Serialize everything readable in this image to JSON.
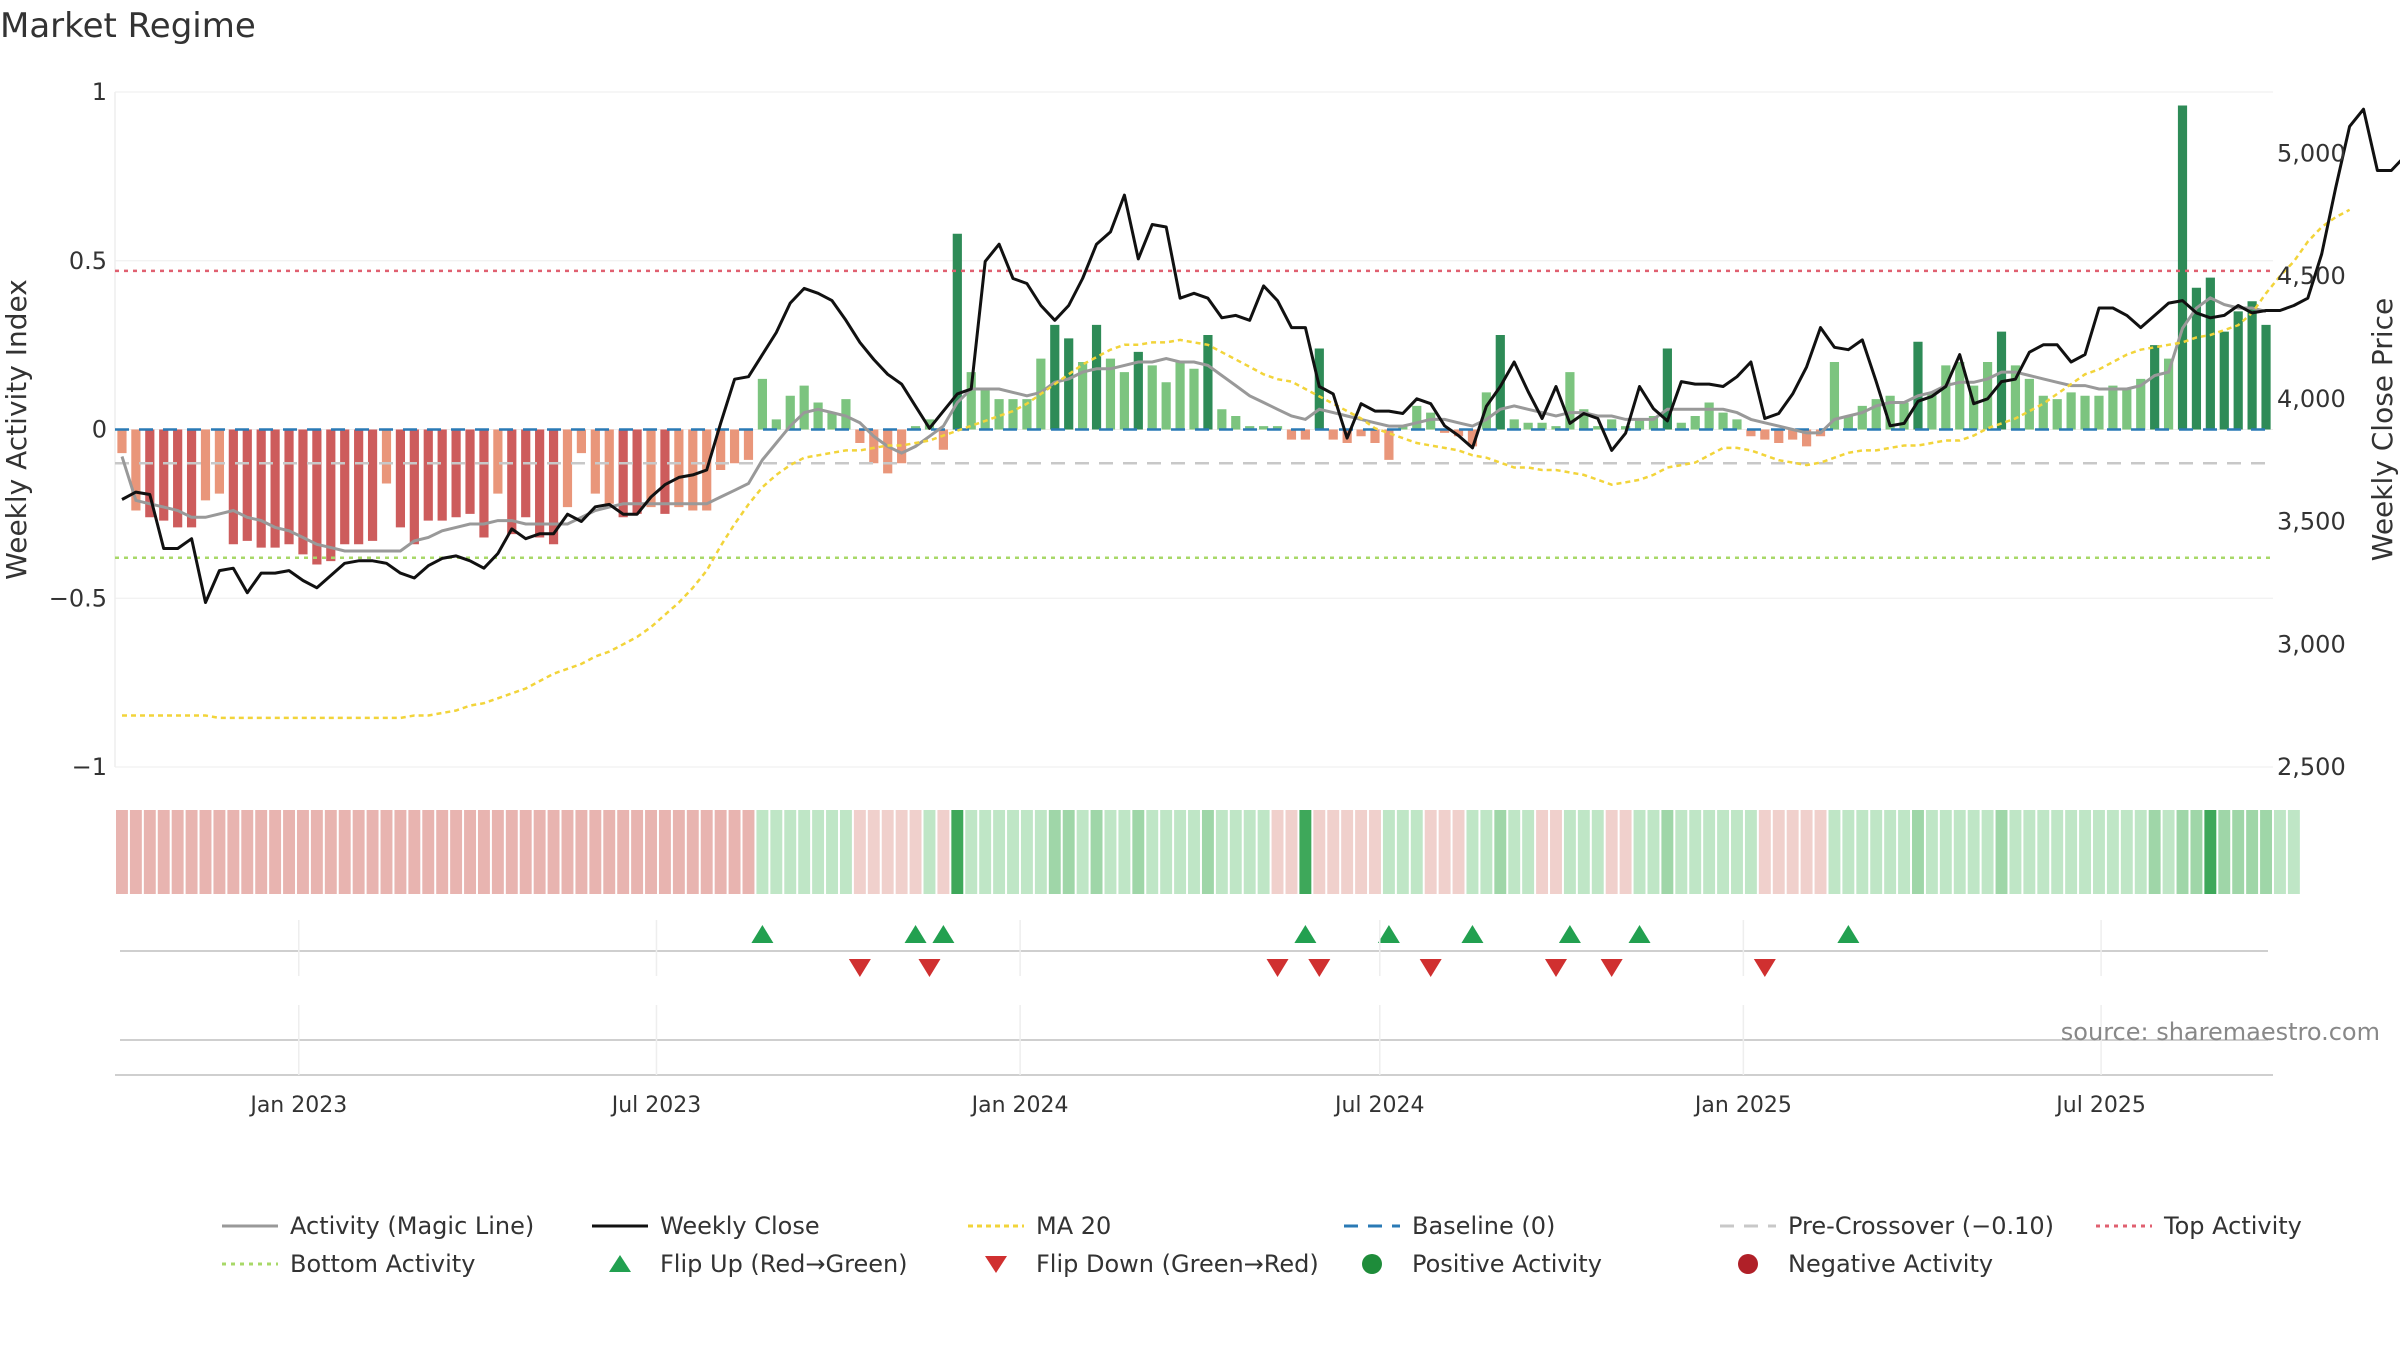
{
  "title": "Market Regime",
  "source": "source: sharemaestro.com",
  "colors": {
    "grid": "#eeeeee",
    "pos_dark": "#2e8b57",
    "pos_light": "#7cc47f",
    "neg_dark": "#cd5c5c",
    "neg_light": "#e9967a",
    "close": "#111111",
    "magic": "#999999",
    "ma20": "#f2d43a",
    "baseline": "#2a7ab5",
    "precross": "#c8c8c8",
    "top": "#e06070",
    "bottom": "#a8d868",
    "flip_up": "#22a050",
    "flip_down": "#d03030"
  },
  "chart_data": {
    "type": "bar+line",
    "ylabel_left": "Weekly Activity Index",
    "ylabel_right": "Weekly Close Price",
    "ylim_left": [
      -1,
      1
    ],
    "ylim_right": [
      2500,
      5250
    ],
    "yticks_left": [
      {
        "v": 1,
        "label": "1"
      },
      {
        "v": 0.5,
        "label": "0.5"
      },
      {
        "v": 0,
        "label": "0"
      },
      {
        "v": -0.5,
        "label": "−0.5"
      },
      {
        "v": -1,
        "label": "−1"
      }
    ],
    "yticks_right": [
      {
        "v": 2500,
        "label": "2,500"
      },
      {
        "v": 3000,
        "label": "3,000"
      },
      {
        "v": 3500,
        "label": "3,500"
      },
      {
        "v": 4000,
        "label": "4,000"
      },
      {
        "v": 4500,
        "label": "4,500"
      },
      {
        "v": 5000,
        "label": "5,000"
      }
    ],
    "x_start": "2022-09-30",
    "x_end": "2025-09-26",
    "xticks": [
      {
        "date": "2023-01-01",
        "label": "Jan 2023"
      },
      {
        "date": "2023-07-01",
        "label": "Jul 2023"
      },
      {
        "date": "2024-01-01",
        "label": "Jan 2024"
      },
      {
        "date": "2024-07-01",
        "label": "Jul 2024"
      },
      {
        "date": "2025-01-01",
        "label": "Jan 2025"
      },
      {
        "date": "2025-07-01",
        "label": "Jul 2025"
      }
    ],
    "activity": [
      -0.07,
      -0.24,
      -0.26,
      -0.27,
      -0.29,
      -0.29,
      -0.21,
      -0.19,
      -0.34,
      -0.33,
      -0.35,
      -0.35,
      -0.34,
      -0.37,
      -0.4,
      -0.39,
      -0.34,
      -0.34,
      -0.33,
      -0.16,
      -0.29,
      -0.34,
      -0.27,
      -0.27,
      -0.26,
      -0.25,
      -0.32,
      -0.19,
      -0.31,
      -0.26,
      -0.32,
      -0.34,
      -0.23,
      -0.07,
      -0.19,
      -0.22,
      -0.26,
      -0.25,
      -0.23,
      -0.25,
      -0.23,
      -0.24,
      -0.24,
      -0.12,
      -0.1,
      -0.09,
      0.15,
      0.03,
      0.1,
      0.13,
      0.08,
      0.05,
      0.09,
      -0.04,
      -0.1,
      -0.13,
      -0.1,
      0.01,
      0.03,
      -0.06,
      0.58,
      0.17,
      0.12,
      0.09,
      0.09,
      0.09,
      0.21,
      0.31,
      0.27,
      0.2,
      0.31,
      0.21,
      0.17,
      0.23,
      0.19,
      0.14,
      0.2,
      0.18,
      0.28,
      0.06,
      0.04,
      0.01,
      0.01,
      0.01,
      -0.03,
      -0.03,
      0.24,
      -0.03,
      -0.04,
      -0.02,
      -0.04,
      -0.09,
      0.01,
      0.07,
      0.05,
      -0.01,
      -0.02,
      -0.05,
      0.11,
      0.28,
      0.03,
      0.02,
      0.02,
      0.01,
      0.17,
      0.06,
      0.01,
      0.03,
      0.01,
      0.03,
      0.04,
      0.24,
      0.02,
      0.04,
      0.08,
      0.05,
      0.03,
      -0.02,
      -0.03,
      -0.04,
      -0.03,
      -0.05,
      -0.02,
      0.2,
      0.04,
      0.07,
      0.09,
      0.1,
      0.08,
      0.26,
      0.11,
      0.19,
      0.2,
      0.13,
      0.2,
      0.29,
      0.19,
      0.15,
      0.1,
      0.09,
      0.11,
      0.1,
      0.1,
      0.13,
      0.12,
      0.15,
      0.25,
      0.21,
      0.96,
      0.42,
      0.45,
      0.29,
      0.35,
      0.38,
      0.31
    ],
    "close": [
      3590,
      3620,
      3610,
      3390,
      3390,
      3430,
      3170,
      3300,
      3310,
      3210,
      3290,
      3290,
      3300,
      3260,
      3230,
      3280,
      3330,
      3340,
      3340,
      3330,
      3290,
      3270,
      3320,
      3350,
      3360,
      3340,
      3310,
      3370,
      3470,
      3430,
      3450,
      3450,
      3530,
      3500,
      3560,
      3570,
      3530,
      3530,
      3600,
      3650,
      3680,
      3690,
      3710,
      3900,
      4080,
      4090,
      4180,
      4270,
      4390,
      4450,
      4430,
      4400,
      4320,
      4230,
      4160,
      4100,
      4060,
      3970,
      3880,
      3950,
      4020,
      4040,
      4560,
      4630,
      4490,
      4470,
      4380,
      4320,
      4380,
      4490,
      4630,
      4680,
      4830,
      4570,
      4710,
      4700,
      4410,
      4430,
      4410,
      4330,
      4340,
      4320,
      4460,
      4400,
      4290,
      4290,
      4050,
      4020,
      3840,
      3980,
      3950,
      3950,
      3940,
      4000,
      3980,
      3890,
      3850,
      3800,
      3970,
      4050,
      4150,
      4030,
      3920,
      4050,
      3900,
      3940,
      3920,
      3790,
      3860,
      4050,
      3960,
      3910,
      4070,
      4060,
      4060,
      4050,
      4090,
      4150,
      3920,
      3940,
      4020,
      4130,
      4290,
      4210,
      4200,
      4240,
      4070,
      3890,
      3900,
      3990,
      4010,
      4050,
      4180,
      3980,
      4000,
      4070,
      4080,
      4190,
      4220,
      4220,
      4150,
      4180,
      4370,
      4370,
      4340,
      4290,
      4340,
      4390,
      4400,
      4350,
      4330,
      4340,
      4380,
      4350,
      4360,
      4360,
      4380,
      4410,
      4590,
      4860,
      5110,
      5180,
      4930,
      4930,
      4990,
      4950,
      4950
    ],
    "magic": [
      -0.08,
      -0.21,
      -0.22,
      -0.23,
      -0.24,
      -0.26,
      -0.26,
      -0.25,
      -0.24,
      -0.26,
      -0.27,
      -0.29,
      -0.3,
      -0.32,
      -0.34,
      -0.35,
      -0.36,
      -0.36,
      -0.36,
      -0.36,
      -0.36,
      -0.33,
      -0.32,
      -0.3,
      -0.29,
      -0.28,
      -0.28,
      -0.27,
      -0.27,
      -0.28,
      -0.28,
      -0.28,
      -0.28,
      -0.26,
      -0.24,
      -0.23,
      -0.22,
      -0.22,
      -0.22,
      -0.22,
      -0.22,
      -0.22,
      -0.22,
      -0.2,
      -0.18,
      -0.16,
      -0.09,
      -0.04,
      0.01,
      0.05,
      0.06,
      0.05,
      0.04,
      0.02,
      -0.02,
      -0.05,
      -0.07,
      -0.05,
      -0.02,
      0.01,
      0.08,
      0.12,
      0.12,
      0.12,
      0.11,
      0.1,
      0.11,
      0.14,
      0.15,
      0.17,
      0.18,
      0.18,
      0.19,
      0.2,
      0.2,
      0.21,
      0.2,
      0.2,
      0.19,
      0.16,
      0.13,
      0.1,
      0.08,
      0.06,
      0.04,
      0.03,
      0.06,
      0.05,
      0.04,
      0.03,
      0.02,
      0.01,
      0.01,
      0.02,
      0.03,
      0.03,
      0.02,
      0.01,
      0.03,
      0.06,
      0.07,
      0.06,
      0.05,
      0.04,
      0.05,
      0.05,
      0.04,
      0.04,
      0.03,
      0.03,
      0.03,
      0.06,
      0.06,
      0.06,
      0.06,
      0.06,
      0.05,
      0.03,
      0.02,
      0.01,
      0.0,
      -0.01,
      -0.01,
      0.03,
      0.04,
      0.05,
      0.07,
      0.08,
      0.08,
      0.1,
      0.11,
      0.13,
      0.14,
      0.14,
      0.15,
      0.17,
      0.17,
      0.16,
      0.15,
      0.14,
      0.13,
      0.13,
      0.12,
      0.12,
      0.12,
      0.13,
      0.16,
      0.17,
      0.3,
      0.36,
      0.39,
      0.37,
      0.36,
      0.36,
      0.35
    ],
    "ma20": [
      2710,
      2710,
      2710,
      2710,
      2710,
      2710,
      2710,
      2700,
      2700,
      2700,
      2700,
      2700,
      2700,
      2700,
      2700,
      2700,
      2700,
      2700,
      2700,
      2700,
      2700,
      2710,
      2710,
      2720,
      2730,
      2750,
      2760,
      2780,
      2800,
      2820,
      2850,
      2880,
      2900,
      2920,
      2950,
      2970,
      3000,
      3030,
      3070,
      3120,
      3170,
      3230,
      3300,
      3400,
      3490,
      3570,
      3640,
      3690,
      3730,
      3760,
      3770,
      3780,
      3790,
      3790,
      3800,
      3810,
      3810,
      3820,
      3830,
      3850,
      3870,
      3890,
      3910,
      3930,
      3950,
      3980,
      4020,
      4060,
      4100,
      4140,
      4170,
      4200,
      4220,
      4220,
      4230,
      4230,
      4240,
      4230,
      4220,
      4190,
      4160,
      4130,
      4100,
      4080,
      4070,
      4040,
      4010,
      3980,
      3950,
      3920,
      3880,
      3860,
      3840,
      3820,
      3810,
      3800,
      3790,
      3770,
      3760,
      3740,
      3720,
      3720,
      3710,
      3710,
      3700,
      3690,
      3670,
      3650,
      3660,
      3670,
      3690,
      3720,
      3730,
      3740,
      3770,
      3800,
      3800,
      3790,
      3770,
      3750,
      3740,
      3730,
      3740,
      3760,
      3780,
      3790,
      3790,
      3800,
      3810,
      3810,
      3820,
      3830,
      3830,
      3850,
      3880,
      3900,
      3920,
      3950,
      3980,
      4020,
      4060,
      4100,
      4120,
      4150,
      4180,
      4200,
      4210,
      4220,
      4230,
      4250,
      4260,
      4280,
      4300,
      4350,
      4430,
      4500,
      4560,
      4640,
      4700,
      4740,
      4770
    ],
    "magic_v": [],
    "regime_blocks": [
      {
        "from": 0,
        "to": 45,
        "tone": "neg"
      },
      {
        "from": 46,
        "to": 52,
        "tone": "pos"
      },
      {
        "from": 53,
        "to": 57,
        "tone": "neg"
      },
      {
        "from": 58,
        "to": 58,
        "tone": "pos"
      },
      {
        "from": 59,
        "to": 59,
        "tone": "neg"
      },
      {
        "from": 60,
        "to": 60,
        "tone": "posdark"
      },
      {
        "from": 61,
        "to": 82,
        "tone": "pos"
      },
      {
        "from": 83,
        "to": 84,
        "tone": "neg"
      },
      {
        "from": 85,
        "to": 85,
        "tone": "posdark"
      },
      {
        "from": 86,
        "to": 90,
        "tone": "neg"
      },
      {
        "from": 91,
        "to": 93,
        "tone": "pos"
      },
      {
        "from": 94,
        "to": 96,
        "tone": "neg"
      },
      {
        "from": 97,
        "to": 101,
        "tone": "pos"
      },
      {
        "from": 102,
        "to": 103,
        "tone": "neg"
      },
      {
        "from": 104,
        "to": 106,
        "tone": "pos"
      },
      {
        "from": 107,
        "to": 108,
        "tone": "neg"
      },
      {
        "from": 109,
        "to": 117,
        "tone": "pos"
      },
      {
        "from": 118,
        "to": 122,
        "tone": "neg"
      },
      {
        "from": 123,
        "to": 149,
        "tone": "pos"
      },
      {
        "from": 150,
        "to": 150,
        "tone": "posdark"
      },
      {
        "from": 151,
        "to": 156,
        "tone": "pos"
      }
    ],
    "flip_up_weeks": [
      46,
      57,
      59,
      85,
      91,
      97,
      104,
      109,
      124
    ],
    "flip_down_weeks": [
      53,
      58,
      83,
      86,
      94,
      103,
      107,
      118
    ],
    "baseline": 0,
    "pre_crossover": -0.1,
    "top_activity": 0.47,
    "bottom_activity": -0.38,
    "legend": [
      {
        "key": "magic",
        "label": "Activity (Magic Line)"
      },
      {
        "key": "close",
        "label": "Weekly Close"
      },
      {
        "key": "ma20",
        "label": "MA 20"
      },
      {
        "key": "baseline",
        "label": "Baseline (0)"
      },
      {
        "key": "precross",
        "label": "Pre-Crossover (−0.10)"
      },
      {
        "key": "top",
        "label": "Top Activity"
      },
      {
        "key": "bottom",
        "label": "Bottom Activity"
      },
      {
        "key": "flip_up",
        "label": "Flip Up (Red→Green)"
      },
      {
        "key": "flip_down",
        "label": "Flip Down (Green→Red)"
      },
      {
        "key": "pos_dot",
        "label": "Positive Activity"
      },
      {
        "key": "neg_dot",
        "label": "Negative Activity"
      }
    ]
  }
}
